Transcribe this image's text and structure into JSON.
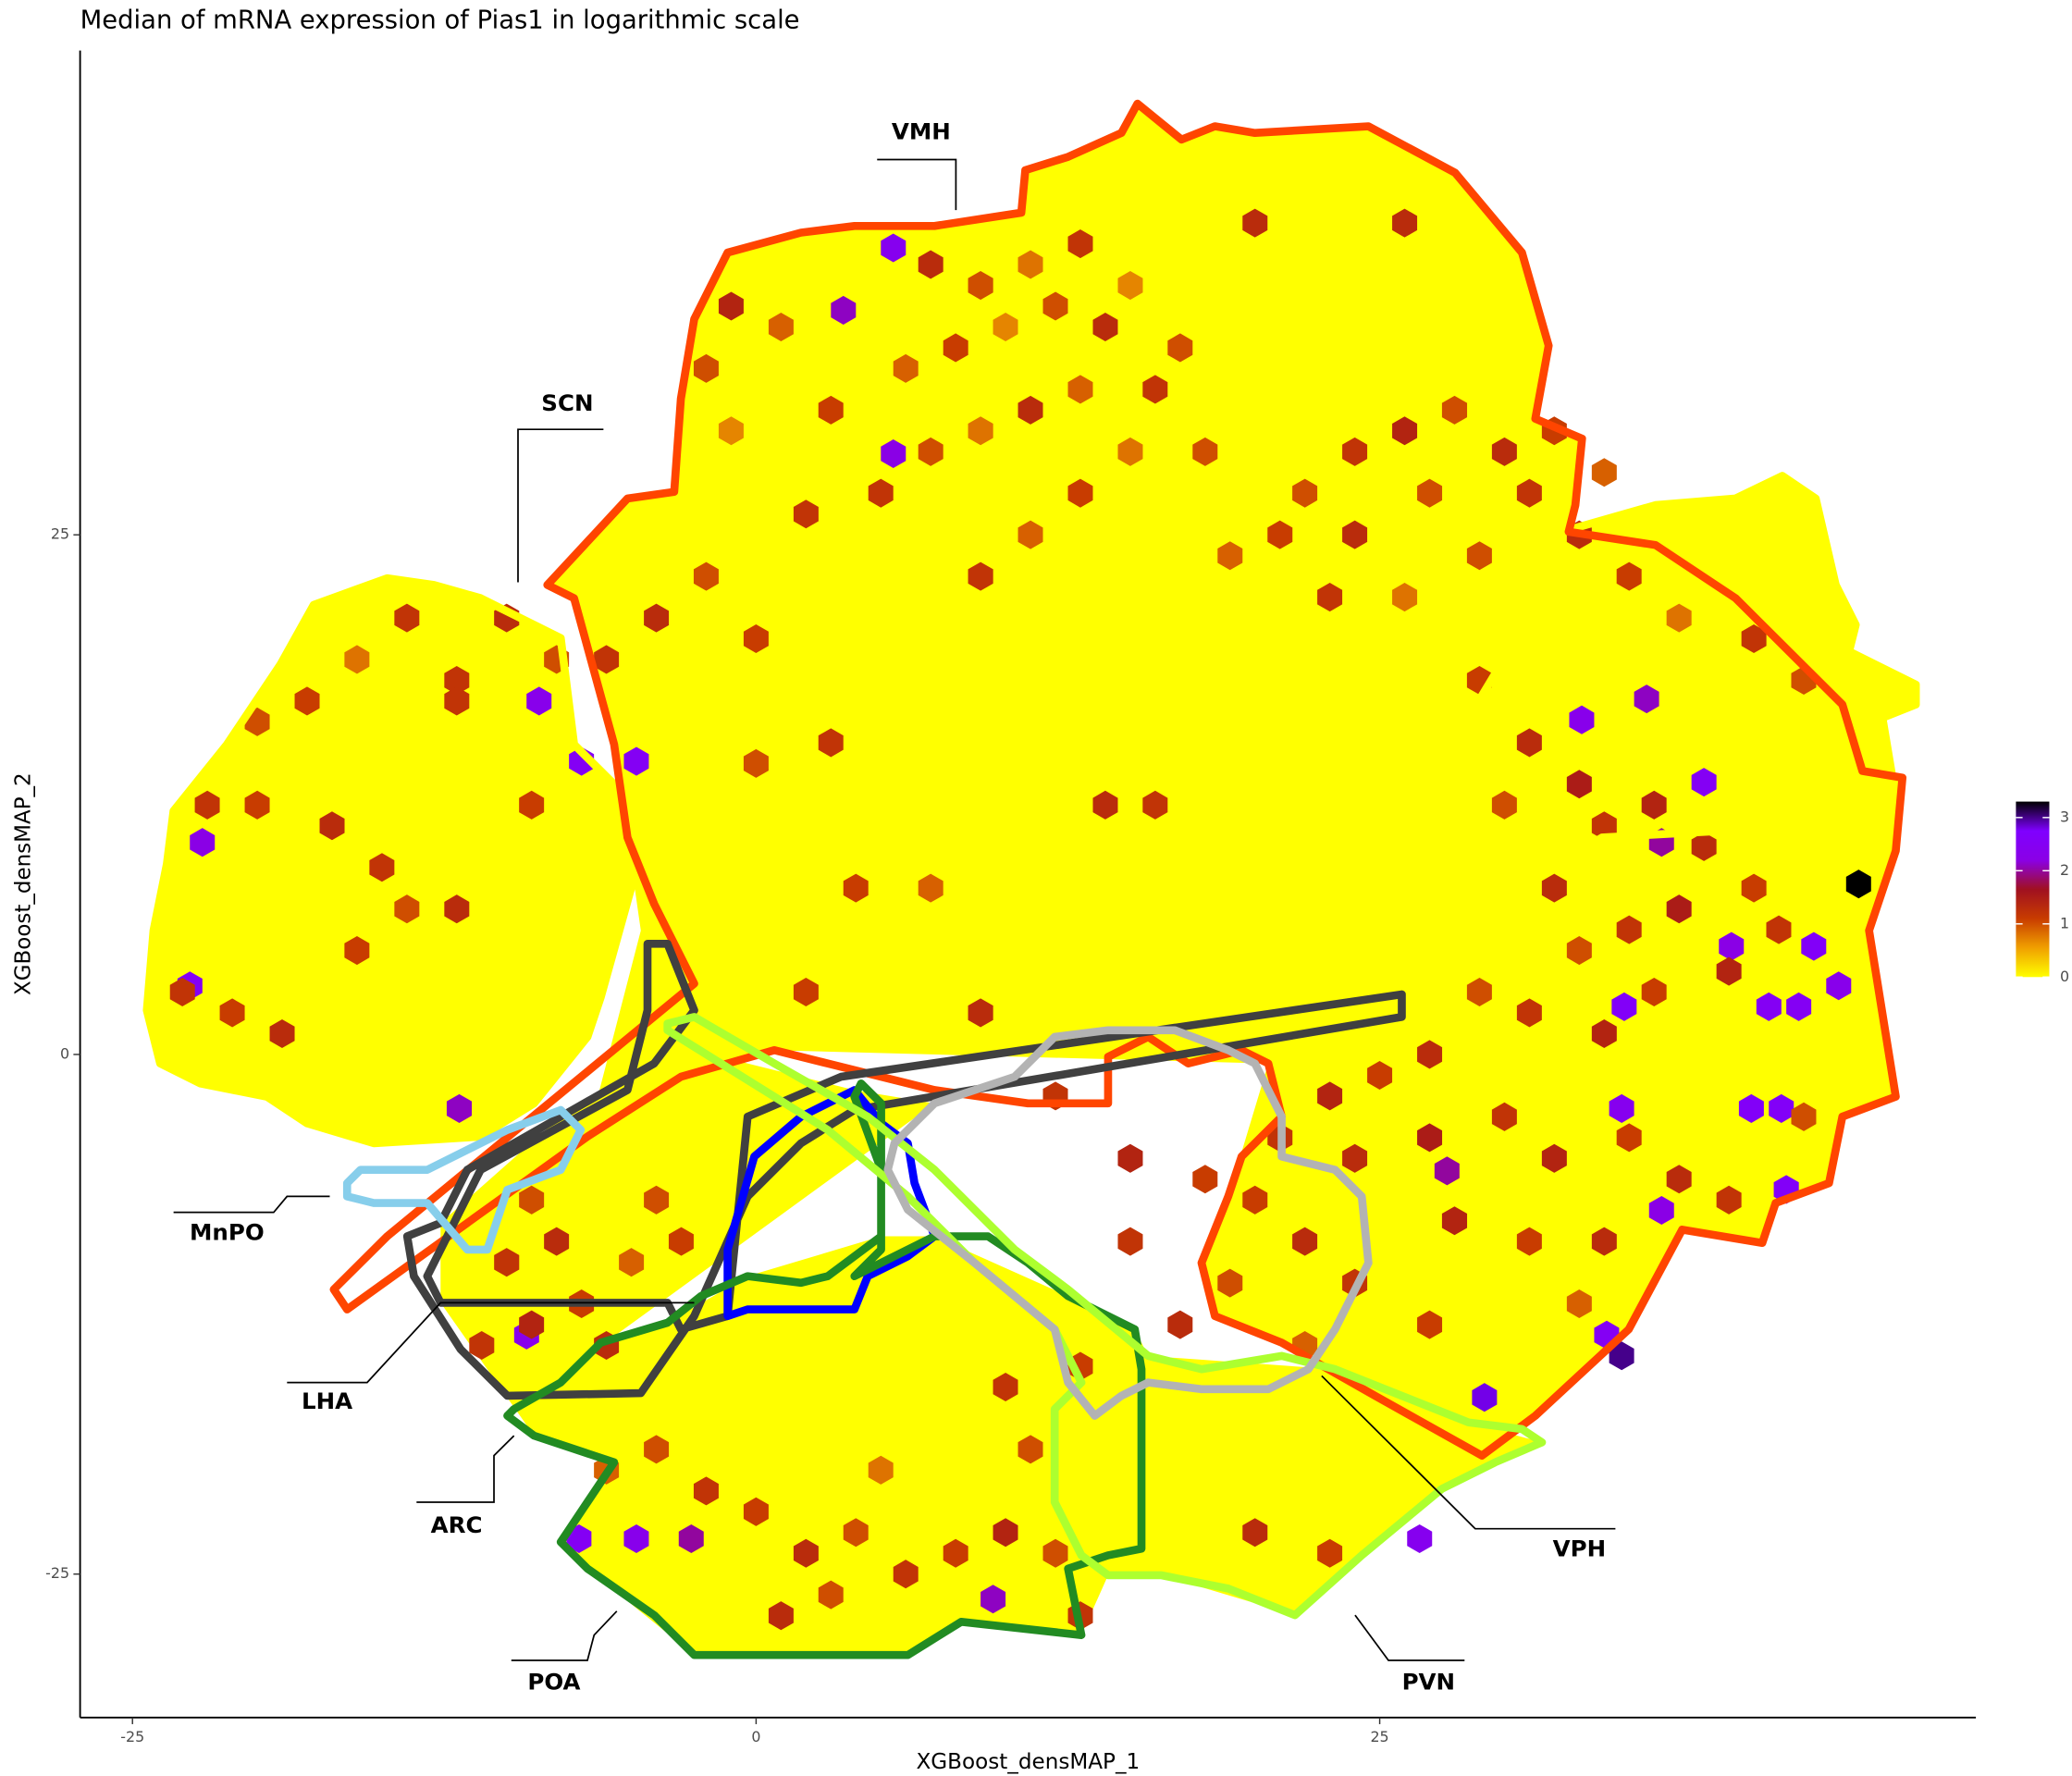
{
  "chart_data": {
    "type": "hexbin",
    "title": "Median of mRNA expression of Pias1 in logarithmic scale",
    "x_label": "XGBoost_densMAP_1",
    "y_label": "XGBoost_densMAP_2",
    "xlim": [
      -27.1,
      48.9
    ],
    "ylim": [
      -31.9,
      48.3
    ],
    "xticks": [
      -25,
      0,
      25
    ],
    "yticks": [
      -25,
      0,
      25
    ],
    "clim": [
      0,
      3.3
    ],
    "cticks": [
      0,
      1,
      2,
      3
    ],
    "colorscale": [
      "#ffff00",
      "#f0a000",
      "#c83c00",
      "#a01020",
      "#8a00e6",
      "#7f00ff",
      "#000000"
    ],
    "region_labels": [
      "VMH",
      "SCN",
      "MnPO",
      "LHA",
      "ARC",
      "POA",
      "PVN",
      "VPH"
    ],
    "x": [
      44.2,
      -8.7,
      -7,
      -4.8,
      -22.2,
      -22.7,
      5.5,
      3.5,
      5.5,
      33.1,
      35.7,
      38.0,
      36.3,
      39.1,
      42.4,
      43.4,
      34.8,
      40.6,
      41.8,
      34.7,
      39.9,
      41.1,
      41.3,
      36.3,
      27.7,
      34.1,
      34.7,
      29.2,
      26.6,
      9.5,
      -7.1,
      -4.8,
      -2.6,
      -9.2,
      -11.9,
      7,
      9,
      11,
      13,
      12,
      10,
      8,
      6,
      14,
      15,
      17,
      16,
      13,
      11,
      9,
      7,
      5,
      3,
      1,
      -1,
      -2,
      -1,
      2,
      20,
      26,
      18,
      15,
      13,
      11,
      9,
      22,
      24,
      26,
      28,
      30,
      32,
      34,
      31,
      27,
      24,
      21,
      19,
      23,
      26,
      29,
      33,
      35,
      37,
      40,
      42,
      29,
      31,
      33,
      30,
      34,
      36,
      38,
      40,
      37,
      35,
      33,
      32,
      39,
      41,
      36,
      34,
      31,
      29,
      27,
      25,
      23,
      21,
      24,
      27,
      30,
      32,
      35,
      37,
      39,
      42,
      20,
      22,
      19,
      24,
      28,
      31,
      34,
      33,
      27,
      22,
      -14,
      -10,
      -8,
      -12,
      -16,
      -18,
      -20,
      -22,
      -20,
      -17,
      -15,
      -14,
      -12,
      -16,
      -23,
      -21,
      -19,
      -12,
      -9,
      -6,
      -4,
      -2,
      0,
      -9,
      -8,
      -10,
      -7,
      -5,
      -9,
      -11,
      -6,
      -4,
      -3,
      3,
      0,
      4,
      14,
      16,
      7,
      2,
      9,
      12,
      15,
      18,
      15,
      17,
      13,
      10,
      11,
      -4,
      -2,
      0,
      2,
      4,
      6,
      8,
      10,
      12,
      1,
      3,
      13,
      -6,
      20,
      23,
      5
    ],
    "y": [
      8.2,
      17.0,
      14.1,
      14.1,
      10.2,
      3.3,
      38.8,
      35.8,
      28.9,
      16.1,
      17.1,
      13.1,
      10.2,
      5.2,
      5.2,
      3.3,
      2.3,
      2.3,
      2.3,
      -2.6,
      -2.6,
      -2.6,
      -6.5,
      -7.5,
      -5.6,
      -13.5,
      -14.5,
      -16.5,
      -23.3,
      -26.2,
      -23.3,
      -23.3,
      -23.3,
      -13.5,
      -2.6,
      38,
      37,
      38,
      39,
      36,
      35,
      34,
      33,
      35,
      37,
      34,
      32,
      32,
      31,
      30,
      29,
      27,
      31,
      35,
      36,
      33,
      30,
      26,
      40,
      40,
      29,
      29,
      27,
      25,
      23,
      27,
      29,
      30,
      31,
      29,
      30,
      28,
      27,
      27,
      25,
      25,
      24,
      22,
      22,
      24,
      25,
      23,
      21,
      20,
      18,
      18,
      15,
      13,
      12,
      11,
      12,
      10,
      8,
      7,
      6,
      5,
      8,
      4,
      6,
      3,
      1,
      2,
      3,
      0,
      -1,
      -2,
      -4,
      -5,
      -4,
      -3,
      -5,
      -4,
      -6,
      -7,
      -3,
      -7,
      -9,
      -11,
      -11,
      -8,
      -9,
      -9,
      -12,
      -13,
      -14,
      21,
      21,
      19,
      18,
      19,
      17,
      16,
      12,
      12,
      11,
      9,
      7,
      7,
      5,
      3,
      2,
      1,
      17,
      12,
      19,
      21,
      23,
      20,
      -7,
      -9,
      -10,
      -12,
      -10,
      -13,
      -14,
      -14,
      -7,
      -9,
      15,
      14,
      8,
      12,
      12,
      8,
      3,
      2,
      -2,
      -5,
      -6,
      -9,
      -13,
      -15,
      -16,
      -19,
      -19,
      -21,
      -22,
      -24,
      -23,
      -25,
      -24,
      -23,
      -24,
      -27,
      -26,
      -27,
      -20,
      -23,
      -24,
      -20
    ],
    "values": [
      3.3,
      2.3,
      2.5,
      2.5,
      2.2,
      2.5,
      2.4,
      2.1,
      2.2,
      2.3,
      2.1,
      2.5,
      2.0,
      2.2,
      2.6,
      2.3,
      2.6,
      2.5,
      2.5,
      2.4,
      2.6,
      2.6,
      2.6,
      2.2,
      2.0,
      2.5,
      3.0,
      2.8,
      2.4,
      2.1,
      2.5,
      2.3,
      2.0,
      2.3,
      2.1,
      1.3,
      1.0,
      0.8,
      1.2,
      1.0,
      0.7,
      1.1,
      0.9,
      1.3,
      0.7,
      1.0,
      1.2,
      0.9,
      1.3,
      0.8,
      1.0,
      1.2,
      1.1,
      0.9,
      1.4,
      1.0,
      0.7,
      1.2,
      1.3,
      1.3,
      1.0,
      0.8,
      1.1,
      0.9,
      1.2,
      1.0,
      1.2,
      1.4,
      1.0,
      1.3,
      1.1,
      0.9,
      1.2,
      1.0,
      1.3,
      1.1,
      0.9,
      1.2,
      0.8,
      1.0,
      1.3,
      1.1,
      0.8,
      1.2,
      1.0,
      1.1,
      1.3,
      1.5,
      1.0,
      1.2,
      1.4,
      1.3,
      1.1,
      1.5,
      1.2,
      1.0,
      1.3,
      1.4,
      1.2,
      1.1,
      1.4,
      1.2,
      1.0,
      1.3,
      1.1,
      1.4,
      1.2,
      1.3,
      1.5,
      1.2,
      1.4,
      1.1,
      1.3,
      1.2,
      1.0,
      1.1,
      1.3,
      1.0,
      1.2,
      1.4,
      1.1,
      1.3,
      0.9,
      1.1,
      0.9,
      1.2,
      1.3,
      1.0,
      1.2,
      0.8,
      1.1,
      1.0,
      1.2,
      1.1,
      1.3,
      1.2,
      1.0,
      1.3,
      1.1,
      1.2,
      1.1,
      1.3,
      1.2,
      1.1,
      1.2,
      1.3,
      1.0,
      1.1,
      1.0,
      1.3,
      1.2,
      1.1,
      0.9,
      1.4,
      1.2,
      1.3,
      1.0,
      1.1,
      1.2,
      1.0,
      1.1,
      1.3,
      1.2,
      0.9,
      1.1,
      1.3,
      1.2,
      1.4,
      1.1,
      1.2,
      1.3,
      1.1,
      1.2,
      1.0,
      1.0,
      1.2,
      1.1,
      1.3,
      1.0,
      1.2,
      1.1,
      1.4,
      1.0,
      1.3,
      1.0,
      1.2,
      0.9,
      1.3,
      1.1,
      0.8
    ]
  }
}
